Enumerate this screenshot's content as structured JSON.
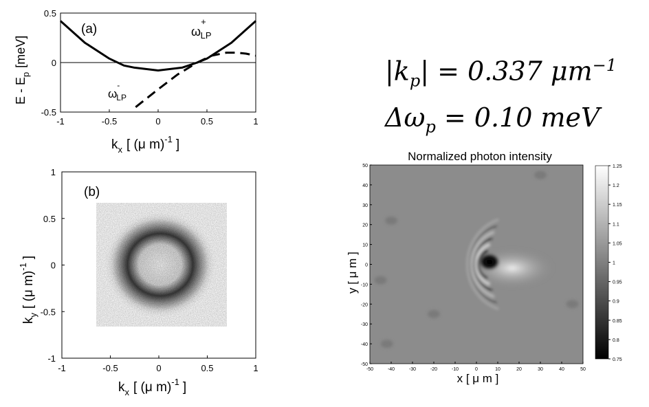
{
  "panel_a": {
    "tag": "(a)",
    "ylabel": "E - E",
    "ylabel_sub": "p",
    "ylabel_unit": "[meV]",
    "xlabel": "k",
    "xlabel_sub": "x",
    "xlabel_unit": "[ (μ m)",
    "xlabel_sup": "-1",
    "xlabel_close": "]",
    "xticks": [
      "-1",
      "-0.5",
      "0",
      "0.5",
      "1"
    ],
    "yticks": [
      "0.5",
      "0",
      "-0.5"
    ],
    "branch_plus": "ω",
    "branch_plus_sup": "+",
    "branch_plus_sub": "LP",
    "branch_minus": "ω",
    "branch_minus_sup": "-",
    "branch_minus_sub": "LP"
  },
  "panel_b": {
    "tag": "(b)",
    "ylabel": "k",
    "ylabel_sub": "y",
    "ylabel_unit": "[ (μ m)",
    "ylabel_sup": "-1",
    "ylabel_close": "]",
    "xlabel": "k",
    "xlabel_sub": "x",
    "xlabel_unit": "[ (μ m)",
    "xlabel_sup": "-1",
    "xlabel_close": "]",
    "xticks": [
      "-1",
      "-0.5",
      "0",
      "0.5",
      "1"
    ],
    "yticks": [
      "1",
      "0.5",
      "0",
      "-0.5",
      "-1"
    ]
  },
  "equations": {
    "line1": "|k_p| = 0.337 μm⁻¹",
    "line2": "Δω_p = 0.10 meV",
    "kp_lhs": "|k",
    "kp_sub": "p",
    "kp_rhs": "| = 0.337 μm",
    "kp_sup": "−1",
    "dw_lhs": "Δω",
    "dw_sub": "p",
    "dw_rhs": " = 0.10 meV"
  },
  "panel_c": {
    "title": "Normalized photon intensity",
    "xlabel": "x [ μ m ]",
    "ylabel": "y [ μ m ]",
    "xticks": [
      "-50",
      "-40",
      "-30",
      "-20",
      "-10",
      "0",
      "10",
      "20",
      "30",
      "40",
      "50"
    ],
    "yticks": [
      "50",
      "40",
      "30",
      "20",
      "10",
      "0",
      "-10",
      "-20",
      "-30",
      "-40",
      "-50"
    ],
    "colorbar_ticks": [
      "1.25",
      "1.2",
      "1.15",
      "1.1",
      "1.05",
      "1",
      "0.95",
      "0.9",
      "0.85",
      "0.8",
      "0.75"
    ]
  },
  "chart_data": [
    {
      "type": "line",
      "panel": "(a)",
      "xlabel": "k_x [ (μ m)^-1 ]",
      "ylabel": "E - E_p [meV]",
      "xlim": [
        -1,
        1
      ],
      "ylim": [
        -0.5,
        0.5
      ],
      "series": [
        {
          "name": "ω+_LP",
          "style": "solid",
          "x": [
            -1,
            -0.75,
            -0.5,
            -0.35,
            -0.25,
            0,
            0.25,
            0.4,
            0.5,
            0.75,
            1
          ],
          "y": [
            0.42,
            0.2,
            0.04,
            -0.03,
            -0.05,
            -0.08,
            -0.05,
            0.0,
            0.04,
            0.2,
            0.42
          ]
        },
        {
          "name": "ω-_LP",
          "style": "dashed",
          "x": [
            -0.23,
            0,
            0.2,
            0.4,
            0.55,
            0.7,
            0.8,
            0.9,
            1.0
          ],
          "y": [
            -0.45,
            -0.27,
            -0.12,
            0.0,
            0.07,
            0.1,
            0.1,
            0.09,
            0.07
          ]
        },
        {
          "name": "zero",
          "style": "thin",
          "x": [
            -1,
            1
          ],
          "y": [
            0,
            0
          ]
        }
      ]
    },
    {
      "type": "heatmap",
      "panel": "(b)",
      "description_value": "ring of intensity at |k| ≈ 0.337",
      "xlabel": "k_x [ (μ m)^-1 ]",
      "ylabel": "k_y [ (μ m)^-1 ]",
      "xlim": [
        -1,
        1
      ],
      "ylim": [
        -1,
        1
      ],
      "ring_radius": 0.36
    },
    {
      "type": "heatmap",
      "title": "Normalized photon intensity",
      "xlabel": "x [ μ m ]",
      "ylabel": "y [ μ m ]",
      "xlim": [
        -50,
        50
      ],
      "ylim": [
        -50,
        50
      ],
      "clim": [
        0.75,
        1.25
      ],
      "defect_center": [
        3,
        0
      ]
    }
  ]
}
